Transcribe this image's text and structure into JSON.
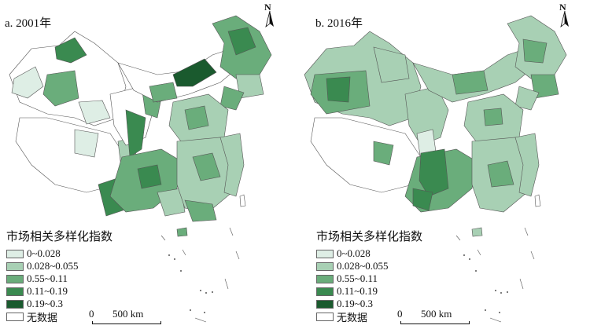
{
  "panels": [
    {
      "title": "a. 2001年",
      "north": "N",
      "legend_title": "市场相关多样化指数",
      "scale_zero": "0",
      "scale_label": "500 km"
    },
    {
      "title": "b. 2016年",
      "north": "N",
      "legend_title": "市场相关多样化指数",
      "scale_zero": "0",
      "scale_label": "500 km"
    }
  ],
  "legend": [
    {
      "label": "0~0.028",
      "color": "#deeee5"
    },
    {
      "label": "0.028~0.055",
      "color": "#a8d0b4"
    },
    {
      "label": "0.55~0.11",
      "color": "#6aad7b"
    },
    {
      "label": "0.11~0.19",
      "color": "#3a8a50"
    },
    {
      "label": "0.19~0.3",
      "color": "#1a5a2e"
    },
    {
      "label": "无数据",
      "color": "#ffffff"
    }
  ]
}
